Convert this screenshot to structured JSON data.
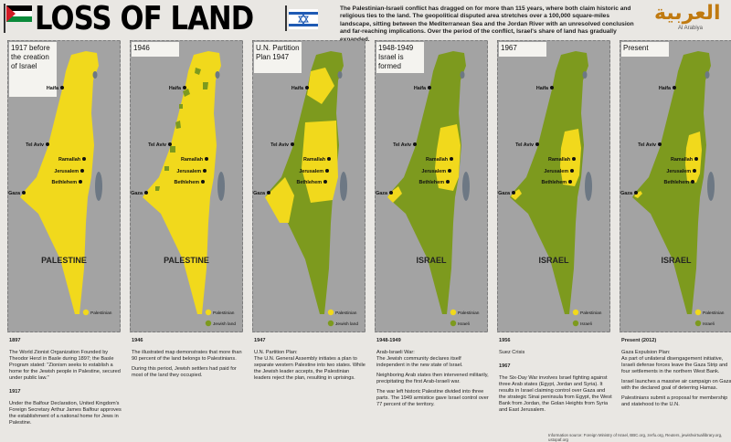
{
  "header": {
    "title": "LOSS OF LAND",
    "intro": "The Palestinian-Israeli conflict has dragged on for more than 115 years, where both claim historic and religious ties to the land. The geopolitical disputed area stretches over a 100,000 square-miles landscape, sitting between the Mediterranean Sea and the Jordan River with an unresolved conclusion and far-reaching implications. Over the period of the conflict, Israel's share of land has gradually expanded.",
    "logo_arabic": "العربية",
    "logo_english": "Al Arabiya"
  },
  "cities": [
    "Haifa",
    "Tel Aviv",
    "Ramallah",
    "Jerusalem",
    "Bethlehem",
    "Gaza"
  ],
  "panels": [
    {
      "label": "1917 before the creation of Israel",
      "region": "PALESTINE",
      "legend": [
        "Palestinian"
      ]
    },
    {
      "label": "1946",
      "region": "PALESTINE",
      "legend": [
        "Palestinian",
        "Jewish land"
      ]
    },
    {
      "label": "U.N. Partition Plan 1947",
      "legend": [
        "Palestinian",
        "Jewish land"
      ]
    },
    {
      "label": "1948-1949 Israel is formed",
      "region": "ISRAEL",
      "legend": [
        "Palestinian",
        "Israeli"
      ]
    },
    {
      "label": "1967",
      "region": "ISRAEL",
      "legend": [
        "Palestinian",
        "Israeli"
      ]
    },
    {
      "label": "Present",
      "region": "ISRAEL",
      "legend": [
        "Palestinian",
        "Israeli"
      ]
    }
  ],
  "timeline": [
    {
      "blocks": [
        {
          "heading": "1897",
          "paragraphs": [
            "The World Zionist Organization Founded by Theodor Herzl in Basle during 1897; the Basle Program stated: \"Zionism seeks to establish a home for the Jewish people in Palestine, secured under public law.\""
          ]
        },
        {
          "heading": "1917",
          "paragraphs": [
            "Under the Balfour Declaration, United Kingdom's Foreign Secretary Arthur James Balfour approves the establishment of a national home for Jews in Palestine."
          ]
        }
      ]
    },
    {
      "blocks": [
        {
          "heading": "1946",
          "paragraphs": [
            "The illustrated map demonstrates that more than 90 percent of the land belongs to Palestinians.",
            "During this period, Jewish settlers had paid for most of the land they occupied."
          ]
        }
      ]
    },
    {
      "blocks": [
        {
          "heading": "1947",
          "paragraphs": [
            "U.N. Partition Plan:\nThe U.N. General Assembly initiates a plan to separate western Palestine into two states. While the Jewish leader accepts, the Palestinian leaders reject the plan, resulting in uprisings."
          ]
        }
      ]
    },
    {
      "blocks": [
        {
          "heading": "1948-1949",
          "paragraphs": [
            "Arab-Israeli War:\nThe Jewish community declares itself independent in the new state of Israel.",
            "Neighboring Arab states then intervened militarily, precipitating the first Arab-Israeli war.",
            "The war left historic Palestine divided into three parts. The 1949 armistice gave Israel control over 77 percent of the territory."
          ]
        }
      ]
    },
    {
      "blocks": [
        {
          "heading": "1956",
          "paragraphs": [
            "Suez Crisis"
          ]
        },
        {
          "heading": "1967",
          "paragraphs": [
            "The Six-Day War involves Israel fighting against three Arab states (Egypt, Jordan and Syria). It results in Israel claiming control over Gaza and the strategic Sinai peninsula from Egypt, the West Bank from Jordan, the Golan Heights from Syria and East Jerusalem."
          ]
        }
      ]
    },
    {
      "blocks": [
        {
          "heading": "Present (2012)",
          "paragraphs": [
            "Gaza Expulsion Plan:\nAs part of unilateral disengagement initiative, Israeli defense forces leave the Gaza Strip and four settlements in the northern West Bank.",
            "Israel launches a massive air campaign on Gaza, with the declared goal of deterring Hamas.",
            "Palestinians submit a proposal for membership and statehood to the U.N."
          ]
        }
      ]
    }
  ],
  "source": "Information source: Foreign Ministry of Israel, BBC.org, zerfu.org, Reuters, jewishvirtuallibrary.org, ustopaf.org"
}
